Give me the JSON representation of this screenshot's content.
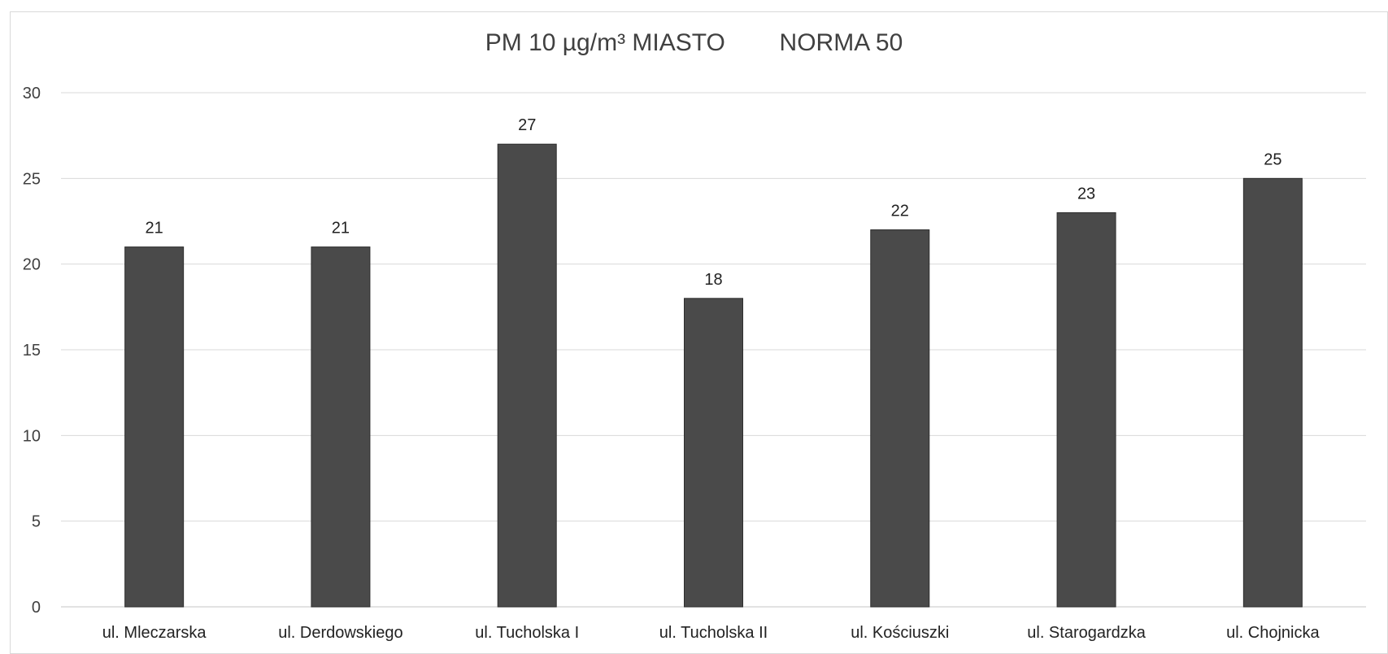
{
  "chart_data": {
    "type": "bar",
    "title": "PM 10 µg/m³ MIASTO        NORMA 50",
    "xlabel": "",
    "ylabel": "",
    "categories": [
      "ul. Mleczarska",
      "ul. Derdowskiego",
      "ul. Tucholska I",
      "ul. Tucholska II",
      "ul. Kościuszki",
      "ul. Starogardzka",
      "ul. Chojnicka"
    ],
    "values": [
      21,
      21,
      27,
      18,
      22,
      23,
      25
    ],
    "ylim": [
      0,
      30
    ],
    "yticks": [
      0,
      5,
      10,
      15,
      20,
      25,
      30
    ],
    "grid": true,
    "legend": "none",
    "data_labels": true,
    "colors": {
      "bar": "#4a4a4a",
      "bar_edge": "#2e2e2e",
      "grid": "#d9d9d9",
      "text": "#404040",
      "label": "#222222"
    }
  }
}
